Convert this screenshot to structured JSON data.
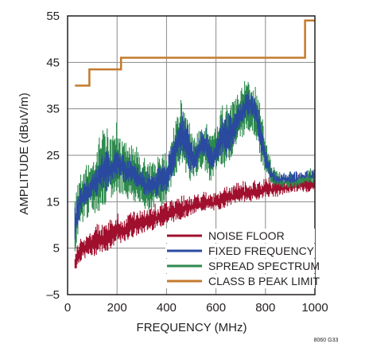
{
  "chart_data": {
    "type": "line",
    "title": "",
    "xlabel": "FREQUENCY (MHz)",
    "ylabel": "AMPLITUDE (dBuV/m)",
    "xlim": [
      0,
      1000
    ],
    "ylim": [
      -5,
      55
    ],
    "xticks": [
      0,
      200,
      400,
      600,
      800,
      1000
    ],
    "yticks": [
      -5,
      5,
      15,
      25,
      35,
      45,
      55
    ],
    "ytick_labels": [
      "–5",
      "5",
      "15",
      "25",
      "35",
      "45",
      "55"
    ],
    "grid": true,
    "legend_position": "bottom-right",
    "figure_id": "8060 G33",
    "series": [
      {
        "name": "NOISE FLOOR",
        "color": "#a0102e",
        "band": true,
        "x": [
          30,
          50,
          80,
          100,
          130,
          150,
          180,
          200,
          230,
          250,
          300,
          350,
          400,
          450,
          500,
          550,
          600,
          650,
          700,
          750,
          800,
          850,
          900,
          950,
          1000
        ],
        "low": [
          0,
          2,
          3,
          3,
          4,
          4,
          5,
          6,
          6,
          7,
          8,
          9,
          10,
          11,
          12,
          13,
          13,
          14,
          15,
          15,
          16,
          16,
          17,
          17,
          17
        ],
        "high": [
          4,
          7,
          8,
          9,
          10,
          10,
          11,
          12,
          11,
          13,
          13,
          14,
          15,
          16,
          16,
          17,
          17,
          18,
          19,
          19,
          20,
          20,
          20,
          21,
          21
        ]
      },
      {
        "name": "FIXED FREQUENCY",
        "color": "#2a4aa0",
        "band": true,
        "x": [
          30,
          50,
          70,
          90,
          100,
          120,
          140,
          160,
          180,
          200,
          220,
          240,
          260,
          280,
          300,
          320,
          340,
          360,
          380,
          400,
          420,
          440,
          460,
          480,
          500,
          520,
          540,
          560,
          580,
          600,
          620,
          640,
          660,
          680,
          700,
          720,
          740,
          760,
          780,
          800,
          820,
          840,
          860,
          880,
          900,
          920,
          940,
          960,
          980,
          1000
        ],
        "low": [
          6,
          12,
          14,
          15,
          16,
          16,
          18,
          17,
          19,
          20,
          20,
          18,
          19,
          18,
          17,
          16,
          16,
          16,
          17,
          17,
          20,
          23,
          25,
          23,
          21,
          22,
          25,
          24,
          21,
          23,
          25,
          24,
          26,
          28,
          31,
          33,
          33,
          32,
          26,
          22,
          20,
          19,
          19,
          19,
          19,
          19,
          20,
          20,
          20,
          20
        ],
        "high": [
          14,
          18,
          20,
          19,
          21,
          23,
          26,
          27,
          25,
          27,
          26,
          25,
          24,
          23,
          22,
          21,
          21,
          22,
          23,
          23,
          28,
          31,
          35,
          33,
          28,
          27,
          30,
          31,
          27,
          28,
          33,
          34,
          34,
          35,
          36,
          39,
          39,
          37,
          33,
          27,
          23,
          21,
          21,
          21,
          21,
          21,
          21,
          21,
          21,
          22
        ]
      },
      {
        "name": "SPREAD SPECTRUM",
        "color": "#2e8a4e",
        "band": true,
        "x": [
          30,
          50,
          70,
          90,
          100,
          120,
          140,
          160,
          180,
          200,
          220,
          240,
          260,
          280,
          300,
          320,
          340,
          360,
          380,
          400,
          420,
          440,
          460,
          480,
          500,
          520,
          540,
          560,
          580,
          600,
          620,
          640,
          660,
          680,
          700,
          720,
          740,
          760,
          780,
          800,
          820,
          840,
          860,
          880,
          900,
          920,
          940,
          960,
          980,
          1000
        ],
        "low": [
          4,
          10,
          11,
          12,
          13,
          12,
          14,
          13,
          15,
          16,
          17,
          15,
          15,
          14,
          13,
          13,
          13,
          14,
          14,
          15,
          18,
          21,
          23,
          21,
          19,
          20,
          22,
          21,
          19,
          21,
          23,
          22,
          24,
          26,
          28,
          30,
          30,
          29,
          24,
          20,
          19,
          18,
          18,
          18,
          18,
          18,
          18,
          19,
          19,
          19
        ],
        "high": [
          16,
          21,
          23,
          24,
          25,
          27,
          30,
          31,
          29,
          32,
          29,
          28,
          27,
          27,
          25,
          24,
          23,
          24,
          25,
          25,
          30,
          33,
          37,
          35,
          30,
          29,
          31,
          32,
          29,
          31,
          35,
          36,
          36,
          38,
          39,
          41,
          41,
          40,
          35,
          29,
          24,
          22,
          21,
          21,
          21,
          21,
          21,
          21,
          22,
          22
        ]
      },
      {
        "name": "CLASS B PEAK LIMIT",
        "color": "#c47a2c",
        "band": false,
        "x": [
          30,
          88,
          88,
          216,
          216,
          960,
          960,
          1000
        ],
        "y": [
          40,
          40,
          43.5,
          43.5,
          46,
          46,
          54,
          54
        ]
      }
    ]
  }
}
